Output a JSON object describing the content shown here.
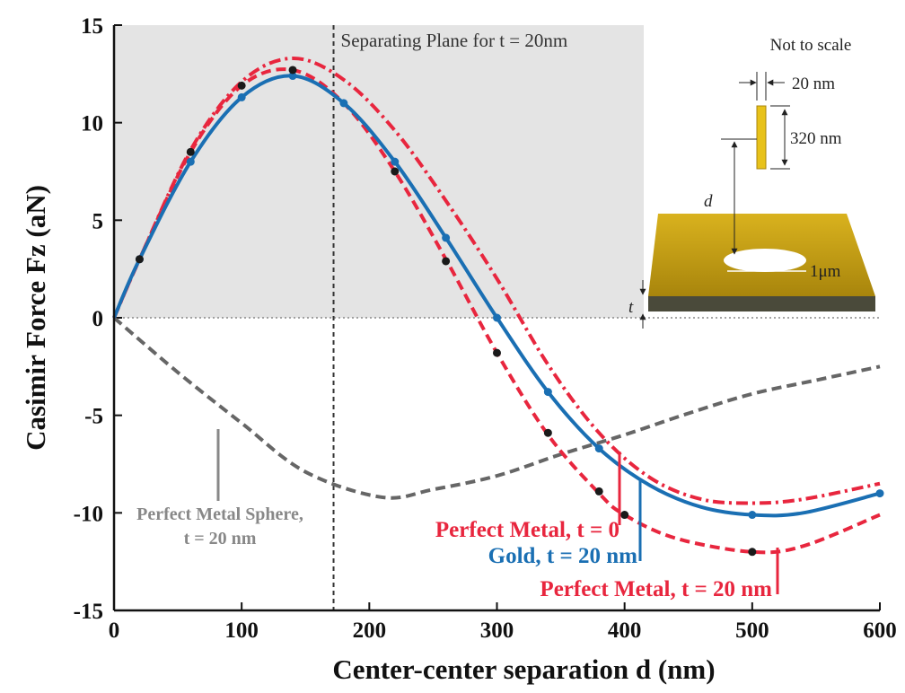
{
  "chart_data": {
    "type": "line",
    "title": "Separating Plane for t = 20nm",
    "xlabel": "Center-center separation d (nm)",
    "ylabel": "Casimir Force Fz (aN)",
    "xlim": [
      0,
      600
    ],
    "ylim": [
      -15,
      15
    ],
    "xticks": [
      0,
      100,
      200,
      300,
      400,
      500,
      600
    ],
    "yticks": [
      -15,
      -10,
      -5,
      0,
      5,
      10,
      15
    ],
    "separating_plane_x": 172,
    "shaded_region": {
      "xlim": [
        0,
        415
      ],
      "ylim": [
        0,
        15
      ]
    },
    "series": [
      {
        "name": "Perfect Metal Sphere, t = 20 nm",
        "color": "#666666",
        "style": "dashed",
        "x": [
          0,
          50,
          100,
          150,
          210,
          250,
          300,
          350,
          400,
          450,
          500,
          550,
          600
        ],
        "values": [
          0,
          -2.8,
          -5.4,
          -7.9,
          -9.2,
          -8.8,
          -8.1,
          -7,
          -6,
          -4.9,
          -3.9,
          -3.2,
          -2.5
        ]
      },
      {
        "name": "Perfect Metal, t = 0",
        "color": "#e8263e",
        "style": "dashdot",
        "x": [
          0,
          20,
          60,
          100,
          140,
          180,
          220,
          260,
          300,
          340,
          380,
          420,
          460,
          500,
          540,
          600
        ],
        "values": [
          0,
          3,
          8.6,
          12.1,
          13.3,
          12.2,
          9.6,
          6,
          2,
          -2.4,
          -5.9,
          -8.2,
          -9.3,
          -9.5,
          -9.3,
          -8.5
        ]
      },
      {
        "name": "Perfect Metal, t = 20 nm",
        "color": "#e8263e",
        "style": "dashed",
        "x": [
          0,
          20,
          60,
          100,
          140,
          180,
          220,
          260,
          300,
          340,
          380,
          400,
          440,
          500,
          540,
          600
        ],
        "values": [
          0,
          3,
          8.5,
          11.9,
          12.7,
          11,
          7.5,
          3,
          -1.8,
          -6,
          -9,
          -10.1,
          -11.3,
          -12,
          -11.7,
          -10.1
        ]
      },
      {
        "name": "Gold, t = 20 nm",
        "color": "#1a6fb3",
        "style": "solid",
        "x": [
          0,
          20,
          60,
          100,
          140,
          180,
          220,
          260,
          300,
          340,
          380,
          420,
          460,
          500,
          540,
          600
        ],
        "values": [
          0,
          3,
          8,
          11.3,
          12.4,
          11,
          8,
          4.1,
          0,
          -3.8,
          -6.7,
          -8.6,
          -9.7,
          -10.1,
          -10,
          -9
        ]
      },
      {
        "color": "#1a6fb3",
        "style": "markers",
        "x": [
          20,
          60,
          100,
          140,
          180,
          220,
          260,
          300,
          340,
          380,
          500,
          600
        ],
        "values": [
          3,
          8,
          11.3,
          12.4,
          11,
          8,
          4.1,
          0,
          -3.8,
          -6.7,
          -10.1,
          -9
        ]
      },
      {
        "color": "#1a1a1a",
        "style": "markers",
        "x": [
          20,
          60,
          100,
          140,
          220,
          260,
          300,
          340,
          380,
          400,
          500
        ],
        "values": [
          3,
          8.5,
          11.9,
          12.7,
          7.5,
          2.9,
          -1.8,
          -5.9,
          -8.9,
          -10.1,
          -12
        ]
      }
    ],
    "inset": {
      "note": "Not to scale",
      "width_label": "20 nm",
      "height_label": "320 nm",
      "d_label": "d",
      "hole_label": "1μm",
      "t_label": "t"
    }
  }
}
